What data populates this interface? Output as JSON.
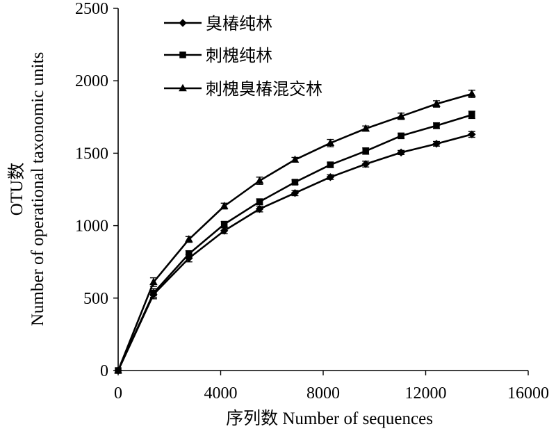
{
  "chart_data": {
    "type": "line",
    "ylabel": "OTU数",
    "ylabel_en": "Number of operational taxonomic units",
    "xlabel": "序列数 Number of sequences",
    "xlim": [
      0,
      16000
    ],
    "ylim": [
      0,
      2500
    ],
    "x_ticks": [
      0,
      4000,
      8000,
      12000,
      16000
    ],
    "y_ticks": [
      0,
      500,
      1000,
      1500,
      2000,
      2500
    ],
    "grid": false,
    "legend_position": "top-left",
    "x": [
      0,
      1380,
      2760,
      4140,
      5520,
      6900,
      8280,
      9660,
      11040,
      12420,
      13800
    ],
    "series": [
      {
        "name": "臭椿纯林",
        "marker": "diamond",
        "values": [
          0,
          525,
          775,
          965,
          1115,
          1225,
          1335,
          1425,
          1505,
          1565,
          1630
        ],
        "errors": [
          0,
          30,
          25,
          20,
          20,
          18,
          16,
          20,
          14,
          16,
          20
        ]
      },
      {
        "name": "刺槐纯林",
        "marker": "square",
        "values": [
          0,
          535,
          805,
          1010,
          1165,
          1300,
          1420,
          1515,
          1620,
          1690,
          1765
        ],
        "errors": [
          0,
          30,
          22,
          18,
          20,
          16,
          18,
          22,
          18,
          20,
          25
        ]
      },
      {
        "name": "刺槐臭椿混交林",
        "marker": "triangle",
        "values": [
          0,
          610,
          905,
          1135,
          1310,
          1455,
          1570,
          1670,
          1755,
          1840,
          1910
        ],
        "errors": [
          0,
          30,
          20,
          20,
          25,
          16,
          25,
          18,
          22,
          22,
          25
        ]
      }
    ]
  }
}
